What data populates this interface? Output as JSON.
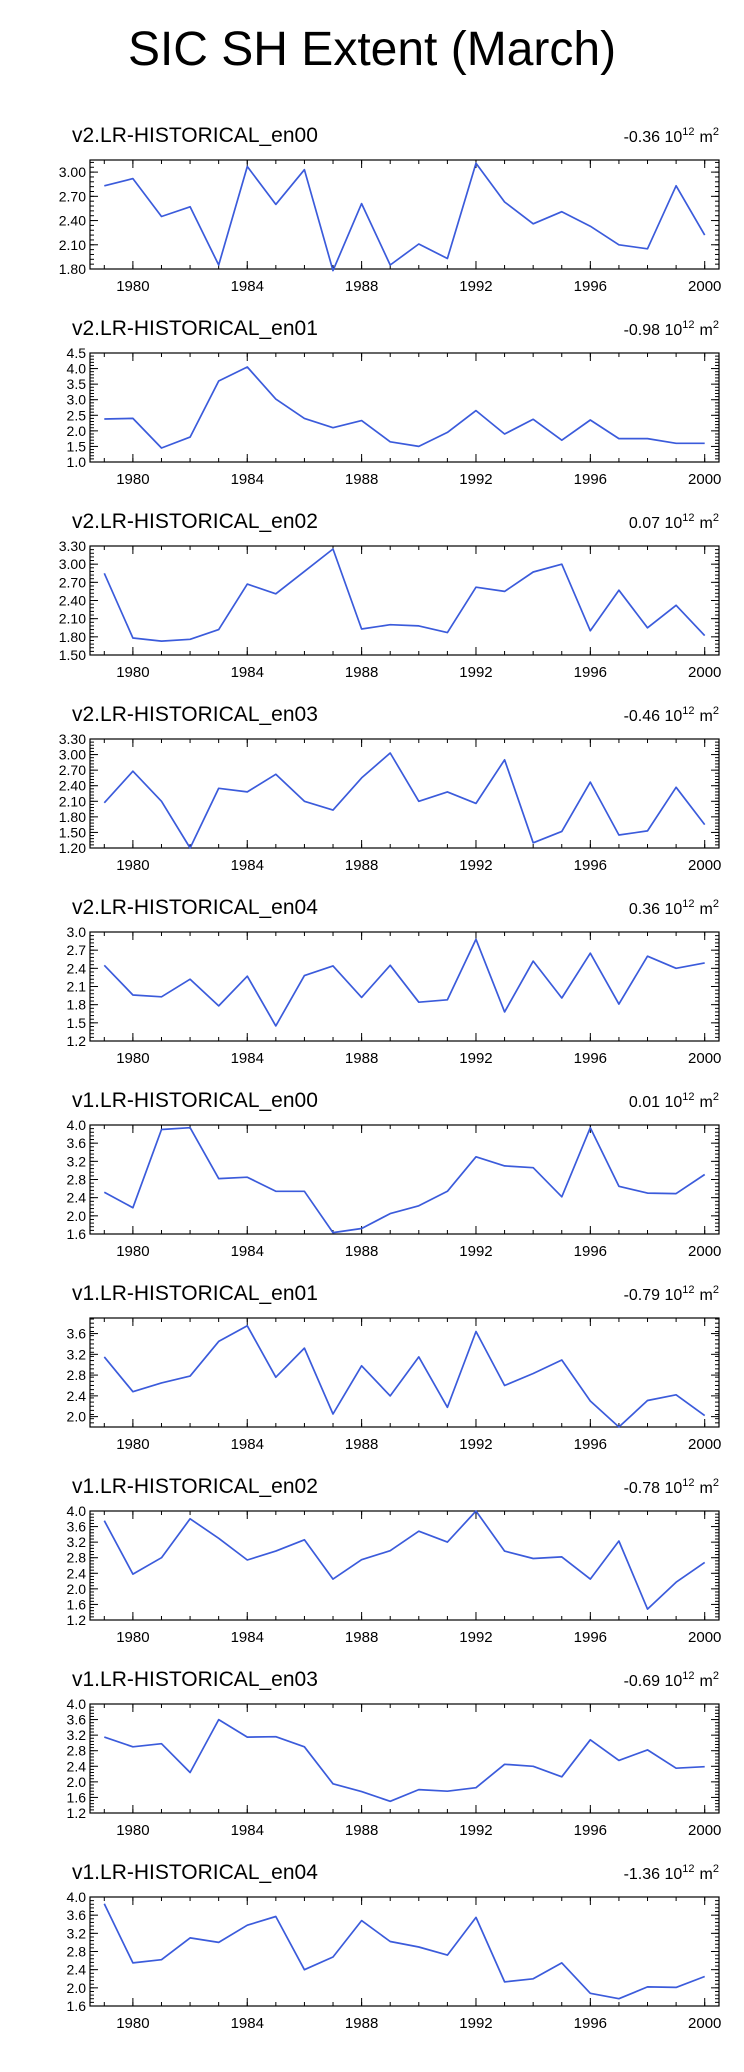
{
  "title": "SIC SH Extent (March)",
  "colors": {
    "line": "#3b5bdb",
    "axis": "#000000"
  },
  "trend_unit": "10",
  "trend_exp": "12",
  "trend_unit_suffix": "m",
  "trend_unit_sup": "2",
  "chart_data": [
    {
      "type": "line",
      "title": "v2.LR-HISTORICAL_en00",
      "trend": "-0.36",
      "x": [
        1979,
        1980,
        1981,
        1982,
        1983,
        1984,
        1985,
        1986,
        1987,
        1988,
        1989,
        1990,
        1991,
        1992,
        1993,
        1994,
        1995,
        1996,
        1997,
        1998,
        1999,
        2000
      ],
      "values": [
        2.83,
        2.92,
        2.45,
        2.57,
        1.85,
        3.07,
        2.6,
        3.03,
        1.78,
        2.61,
        1.85,
        2.11,
        1.93,
        3.11,
        2.63,
        2.36,
        2.51,
        2.33,
        2.1,
        2.05,
        2.83,
        2.22
      ],
      "ylim": [
        1.8,
        3.15
      ],
      "yticks": [
        "1.80",
        "2.10",
        "2.40",
        "2.70",
        "3.00"
      ],
      "xticks": [
        "1980",
        "1984",
        "1988",
        "1992",
        "1996",
        "2000"
      ]
    },
    {
      "type": "line",
      "title": "v2.LR-HISTORICAL_en01",
      "trend": "-0.98",
      "x": [
        1979,
        1980,
        1981,
        1982,
        1983,
        1984,
        1985,
        1986,
        1987,
        1988,
        1989,
        1990,
        1991,
        1992,
        1993,
        1994,
        1995,
        1996,
        1997,
        1998,
        1999,
        2000
      ],
      "values": [
        2.38,
        2.4,
        1.45,
        1.8,
        3.6,
        4.05,
        3.02,
        2.4,
        2.1,
        2.33,
        1.65,
        1.5,
        1.95,
        2.65,
        1.9,
        2.37,
        1.7,
        2.35,
        1.75,
        1.75,
        1.6,
        1.6
      ],
      "ylim": [
        1.0,
        4.5
      ],
      "yticks": [
        "1.0",
        "1.5",
        "2.0",
        "2.5",
        "3.0",
        "3.5",
        "4.0",
        "4.5"
      ],
      "xticks": [
        "1980",
        "1984",
        "1988",
        "1992",
        "1996",
        "2000"
      ]
    },
    {
      "type": "line",
      "title": "v2.LR-HISTORICAL_en02",
      "trend": "0.07",
      "x": [
        1979,
        1980,
        1981,
        1982,
        1983,
        1984,
        1985,
        1986,
        1987,
        1988,
        1989,
        1990,
        1991,
        1992,
        1993,
        1994,
        1995,
        1996,
        1997,
        1998,
        1999,
        2000
      ],
      "values": [
        2.85,
        1.78,
        1.73,
        1.76,
        1.92,
        2.67,
        2.51,
        2.88,
        3.25,
        1.93,
        2.0,
        1.98,
        1.87,
        2.62,
        2.55,
        2.87,
        3.0,
        1.9,
        2.57,
        1.95,
        2.32,
        1.82
      ],
      "ylim": [
        1.5,
        3.3
      ],
      "yticks": [
        "1.50",
        "1.80",
        "2.10",
        "2.40",
        "2.70",
        "3.00",
        "3.30"
      ],
      "xticks": [
        "1980",
        "1984",
        "1988",
        "1992",
        "1996",
        "2000"
      ]
    },
    {
      "type": "line",
      "title": "v2.LR-HISTORICAL_en03",
      "trend": "-0.46",
      "x": [
        1979,
        1980,
        1981,
        1982,
        1983,
        1984,
        1985,
        1986,
        1987,
        1988,
        1989,
        1990,
        1991,
        1992,
        1993,
        1994,
        1995,
        1996,
        1997,
        1998,
        1999,
        2000
      ],
      "values": [
        2.07,
        2.68,
        2.1,
        1.2,
        2.35,
        2.28,
        2.62,
        2.1,
        1.93,
        2.55,
        3.03,
        2.1,
        2.28,
        2.06,
        2.9,
        1.3,
        1.52,
        2.47,
        1.45,
        1.53,
        2.37,
        1.65
      ],
      "ylim": [
        1.2,
        3.3
      ],
      "yticks": [
        "1.20",
        "1.50",
        "1.80",
        "2.10",
        "2.40",
        "2.70",
        "3.00",
        "3.30"
      ],
      "xticks": [
        "1980",
        "1984",
        "1988",
        "1992",
        "1996",
        "2000"
      ]
    },
    {
      "type": "line",
      "title": "v2.LR-HISTORICAL_en04",
      "trend": "0.36",
      "x": [
        1979,
        1980,
        1981,
        1982,
        1983,
        1984,
        1985,
        1986,
        1987,
        1988,
        1989,
        1990,
        1991,
        1992,
        1993,
        1994,
        1995,
        1996,
        1997,
        1998,
        1999,
        2000
      ],
      "values": [
        2.45,
        1.96,
        1.93,
        2.22,
        1.78,
        2.27,
        1.45,
        2.28,
        2.44,
        1.92,
        2.45,
        1.84,
        1.88,
        2.88,
        1.68,
        2.52,
        1.91,
        2.65,
        1.81,
        2.6,
        2.4,
        2.49
      ],
      "ylim": [
        1.2,
        3.0
      ],
      "yticks": [
        "1.2",
        "1.5",
        "1.8",
        "2.1",
        "2.4",
        "2.7",
        "3.0"
      ],
      "xticks": [
        "1980",
        "1984",
        "1988",
        "1992",
        "1996",
        "2000"
      ]
    },
    {
      "type": "line",
      "title": "v1.LR-HISTORICAL_en00",
      "trend": "0.01",
      "x": [
        1979,
        1980,
        1981,
        1982,
        1983,
        1984,
        1985,
        1986,
        1987,
        1988,
        1989,
        1990,
        1991,
        1992,
        1993,
        1994,
        1995,
        1996,
        1997,
        1998,
        1999,
        2000
      ],
      "values": [
        2.52,
        2.18,
        3.9,
        3.94,
        2.82,
        2.85,
        2.54,
        2.54,
        1.63,
        1.72,
        2.05,
        2.22,
        2.54,
        3.3,
        3.1,
        3.06,
        2.42,
        3.94,
        2.65,
        2.5,
        2.49,
        2.91
      ],
      "ylim": [
        1.6,
        4.0
      ],
      "yticks": [
        "1.6",
        "2.0",
        "2.4",
        "2.8",
        "3.2",
        "3.6",
        "4.0"
      ],
      "xticks": [
        "1980",
        "1984",
        "1988",
        "1992",
        "1996",
        "2000"
      ]
    },
    {
      "type": "line",
      "title": "v1.LR-HISTORICAL_en01",
      "trend": "-0.79",
      "x": [
        1979,
        1980,
        1981,
        1982,
        1983,
        1984,
        1985,
        1986,
        1987,
        1988,
        1989,
        1990,
        1991,
        1992,
        1993,
        1994,
        1995,
        1996,
        1997,
        1998,
        1999,
        2000
      ],
      "values": [
        3.15,
        2.48,
        2.65,
        2.78,
        3.45,
        3.75,
        2.76,
        3.32,
        2.05,
        2.98,
        2.4,
        3.15,
        2.18,
        3.64,
        2.6,
        2.83,
        3.09,
        2.3,
        1.8,
        2.31,
        2.42,
        2.02
      ],
      "ylim": [
        1.8,
        3.9
      ],
      "yticks": [
        "2.0",
        "2.4",
        "2.8",
        "3.2",
        "3.6"
      ],
      "xticks": [
        "1980",
        "1984",
        "1988",
        "1992",
        "1996",
        "2000"
      ]
    },
    {
      "type": "line",
      "title": "v1.LR-HISTORICAL_en02",
      "trend": "-0.78",
      "x": [
        1979,
        1980,
        1981,
        1982,
        1983,
        1984,
        1985,
        1986,
        1987,
        1988,
        1989,
        1990,
        1991,
        1992,
        1993,
        1994,
        1995,
        1996,
        1997,
        1998,
        1999,
        2000
      ],
      "values": [
        3.75,
        2.38,
        2.8,
        3.8,
        3.3,
        2.74,
        2.97,
        3.26,
        2.25,
        2.75,
        2.98,
        3.48,
        3.2,
        4.0,
        2.97,
        2.78,
        2.82,
        2.25,
        3.23,
        1.48,
        2.17,
        2.68
      ],
      "ylim": [
        1.2,
        4.0
      ],
      "yticks": [
        "1.2",
        "1.6",
        "2.0",
        "2.4",
        "2.8",
        "3.2",
        "3.6",
        "4.0"
      ],
      "xticks": [
        "1980",
        "1984",
        "1988",
        "1992",
        "1996",
        "2000"
      ]
    },
    {
      "type": "line",
      "title": "v1.LR-HISTORICAL_en03",
      "trend": "-0.69",
      "x": [
        1979,
        1980,
        1981,
        1982,
        1983,
        1984,
        1985,
        1986,
        1987,
        1988,
        1989,
        1990,
        1991,
        1992,
        1993,
        1994,
        1995,
        1996,
        1997,
        1998,
        1999,
        2000
      ],
      "values": [
        3.15,
        2.9,
        2.98,
        2.24,
        3.6,
        3.15,
        3.16,
        2.9,
        1.95,
        1.75,
        1.5,
        1.8,
        1.76,
        1.85,
        2.45,
        2.4,
        2.13,
        3.08,
        2.55,
        2.82,
        2.35,
        2.39
      ],
      "ylim": [
        1.2,
        4.0
      ],
      "yticks": [
        "1.2",
        "1.6",
        "2.0",
        "2.4",
        "2.8",
        "3.2",
        "3.6",
        "4.0"
      ],
      "xticks": [
        "1980",
        "1984",
        "1988",
        "1992",
        "1996",
        "2000"
      ]
    },
    {
      "type": "line",
      "title": "v1.LR-HISTORICAL_en04",
      "trend": "-1.36",
      "x": [
        1979,
        1980,
        1981,
        1982,
        1983,
        1984,
        1985,
        1986,
        1987,
        1988,
        1989,
        1990,
        1991,
        1992,
        1993,
        1994,
        1995,
        1996,
        1997,
        1998,
        1999,
        2000
      ],
      "values": [
        3.85,
        2.55,
        2.62,
        3.1,
        3.0,
        3.38,
        3.57,
        2.4,
        2.68,
        3.48,
        3.02,
        2.9,
        2.72,
        3.55,
        2.13,
        2.2,
        2.55,
        1.88,
        1.76,
        2.02,
        2.01,
        2.25
      ],
      "ylim": [
        1.6,
        4.0
      ],
      "yticks": [
        "1.6",
        "2.0",
        "2.4",
        "2.8",
        "3.2",
        "3.6",
        "4.0"
      ],
      "xticks": [
        "1980",
        "1984",
        "1988",
        "1992",
        "1996",
        "2000"
      ]
    }
  ]
}
